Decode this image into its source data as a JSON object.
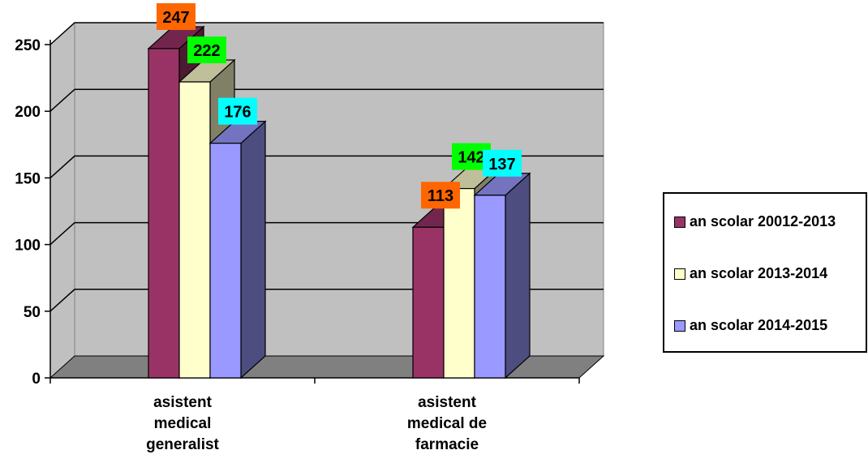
{
  "chart_data": {
    "type": "bar",
    "categories": [
      "asistent medical generalist",
      "asistent medical de farmacie"
    ],
    "category_lines": [
      [
        "asistent",
        "medical",
        "generalist"
      ],
      [
        "asistent",
        "medical de",
        "farmacie"
      ]
    ],
    "series": [
      {
        "name": "an scolar 20012-2013",
        "values": [
          247,
          113
        ],
        "color": "#993366",
        "label_bg": "#FF6600"
      },
      {
        "name": "an scolar 2013-2014",
        "values": [
          222,
          142
        ],
        "color": "#FFFFCC",
        "label_bg": "#00FF00"
      },
      {
        "name": "an scolar 2014-2015",
        "values": [
          176,
          137
        ],
        "color": "#9999FF",
        "label_bg": "#00FFFF"
      }
    ],
    "ylim": [
      0,
      250
    ],
    "yticks": [
      0,
      50,
      100,
      150,
      200,
      250
    ],
    "grid": true,
    "legend_position": "right",
    "walls_color": "#C0C0C0",
    "floor_color": "#808080"
  }
}
